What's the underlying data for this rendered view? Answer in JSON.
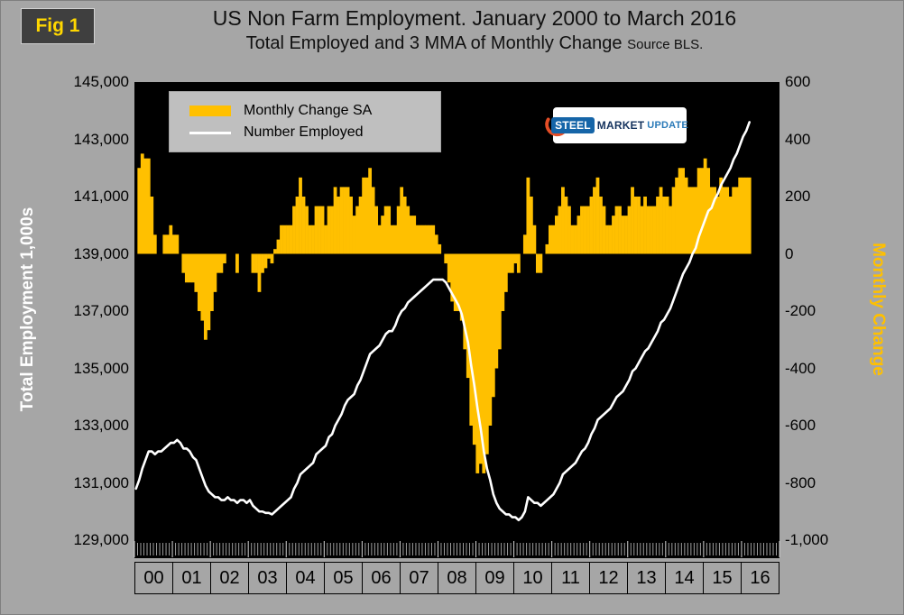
{
  "figure_label": "Fig 1",
  "title": "US Non Farm Employment. January 2000 to March 2016",
  "subtitle": "Total Employed and 3 MMA of Monthly Change",
  "source_note": "Source BLS.",
  "legend": {
    "bar_label": "Monthly Change SA",
    "line_label": "Number Employed",
    "position": "top-left inside plot"
  },
  "logo": {
    "steel": "STEEL",
    "market": "MARKET",
    "update": "UPDATE"
  },
  "axes": {
    "left_title": "Total Employment 1,000s",
    "right_title": "Monthly Change",
    "left_ticks": [
      "145,000",
      "143,000",
      "141,000",
      "139,000",
      "137,000",
      "135,000",
      "133,000",
      "131,000",
      "129,000"
    ],
    "right_ticks": [
      "600",
      "400",
      "200",
      "0",
      "-200",
      "-400",
      "-600",
      "-800",
      "-1,000"
    ],
    "x_labels": [
      "00",
      "01",
      "02",
      "03",
      "04",
      "05",
      "06",
      "07",
      "08",
      "09",
      "10",
      "11",
      "12",
      "13",
      "14",
      "15",
      "16"
    ]
  },
  "colors": {
    "page_bg": "#a6a6a6",
    "plot_bg": "#000000",
    "bar": "#FFC000",
    "line": "#FFFFFF",
    "left_axis_title": "#FFFFFF",
    "right_axis_title": "#FFC000",
    "fig_label": "#FFD700",
    "legend_bg": "#bfbfbf",
    "tick_text": "#000000"
  },
  "chart_data": {
    "type": "combo",
    "x_unit": "month",
    "x_start": "2000-01",
    "x_end": "2016-03",
    "x_axis_months_allocated": 204,
    "grid": false,
    "left_axis": {
      "title": "Total Employment 1,000s",
      "min": 129000,
      "max": 145000,
      "tick_step": 2000
    },
    "right_axis": {
      "title": "Monthly Change",
      "min": -1000,
      "max": 600,
      "tick_step": 200
    },
    "series": [
      {
        "name": "Number Employed",
        "type": "line",
        "axis": "left",
        "color": "#FFFFFF",
        "values": [
          130800,
          131100,
          131500,
          131800,
          132100,
          132100,
          132000,
          132100,
          132100,
          132200,
          132300,
          132400,
          132400,
          132500,
          132400,
          132200,
          132200,
          132100,
          131900,
          131800,
          131500,
          131200,
          130900,
          130700,
          130600,
          130500,
          130500,
          130400,
          130400,
          130500,
          130400,
          130400,
          130300,
          130400,
          130400,
          130300,
          130400,
          130200,
          130100,
          130000,
          130000,
          129950,
          129950,
          129900,
          130000,
          130100,
          130200,
          130300,
          130400,
          130500,
          130800,
          131000,
          131300,
          131400,
          131500,
          131600,
          131700,
          132000,
          132100,
          132200,
          132300,
          132600,
          132700,
          133000,
          133200,
          133400,
          133700,
          133900,
          134000,
          134100,
          134400,
          134600,
          134900,
          135200,
          135500,
          135600,
          135700,
          135800,
          136000,
          136200,
          136300,
          136300,
          136500,
          136800,
          137000,
          137100,
          137300,
          137400,
          137500,
          137600,
          137700,
          137800,
          137900,
          138000,
          138100,
          138100,
          138100,
          138100,
          138000,
          137800,
          137600,
          137400,
          137200,
          136900,
          136400,
          135900,
          135100,
          134400,
          133600,
          132900,
          132100,
          131500,
          131100,
          130600,
          130300,
          130100,
          130000,
          129900,
          129900,
          129800,
          129800,
          129700,
          129800,
          130000,
          130500,
          130400,
          130300,
          130300,
          130200,
          130300,
          130400,
          130500,
          130600,
          130800,
          131000,
          131300,
          131400,
          131500,
          131600,
          131700,
          131900,
          132100,
          132200,
          132400,
          132700,
          132900,
          133200,
          133300,
          133400,
          133500,
          133600,
          133800,
          134000,
          134100,
          134200,
          134400,
          134600,
          134900,
          135000,
          135200,
          135400,
          135600,
          135700,
          135900,
          136100,
          136300,
          136600,
          136700,
          136900,
          137100,
          137400,
          137700,
          138000,
          138300,
          138500,
          138700,
          139000,
          139200,
          139600,
          139900,
          140200,
          140500,
          140600,
          140900,
          141100,
          141400,
          141600,
          141800,
          142000,
          142300,
          142500,
          142800,
          143100,
          143300,
          143600
        ]
      },
      {
        "name": "Monthly Change SA",
        "type": "bar",
        "axis": "right",
        "color": "#FFC000",
        "definition": "3-month moving average (3 MMA) of the month-over-month change in the Number Employed series above; bars derived from those values"
      }
    ]
  }
}
